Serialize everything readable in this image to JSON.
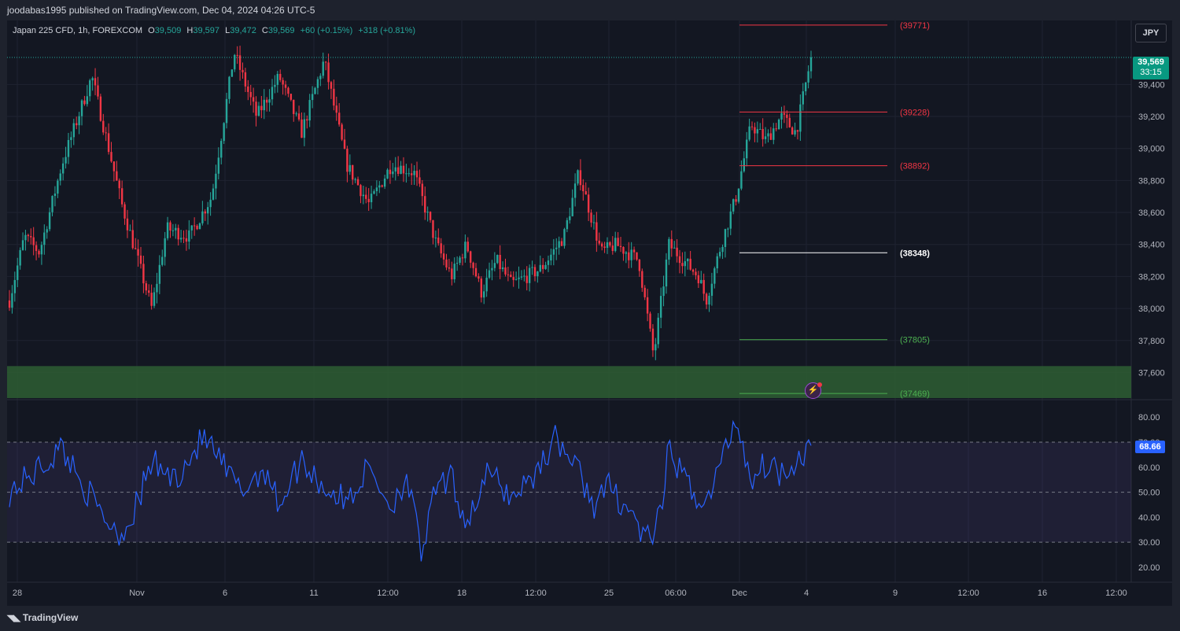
{
  "publisher_line": "joodabas1995 published on TradingView.com, Dec 04, 2024 04:26 UTC-5",
  "symbol_info": {
    "name": "Japan 225 CFD, 1h, FOREXCOM",
    "open_label": "O",
    "open": "39,509",
    "high_label": "H",
    "high": "39,597",
    "low_label": "L",
    "low": "39,472",
    "close_label": "C",
    "close": "39,569",
    "change": "+60 (+0.15%)",
    "change2": "+318 (+0.81%)"
  },
  "currency_button": "JPY",
  "last_price": {
    "price": "39,569",
    "countdown": "33:15"
  },
  "rsi_value_label": "68.66",
  "brand": "TradingView",
  "alert_icon": "lightning-alert-icon",
  "colors": {
    "background": "#131722",
    "up": "#26a69a",
    "down": "#f23645",
    "rsi_line": "#2962ff",
    "rsi_band": "#7e57c2",
    "support_zone": "#2e5e33",
    "level_red": "#f23645",
    "level_white": "#ffffff",
    "level_green": "#4caf50"
  },
  "chart_data": [
    {
      "type": "candlestick",
      "title": "Japan 225 CFD, 1h, FOREXCOM",
      "ylim": [
        37430,
        39800
      ],
      "y_ticks": [
        {
          "value": 39400,
          "label": "39,400"
        },
        {
          "value": 39200,
          "label": "39,200"
        },
        {
          "value": 39000,
          "label": "39,000"
        },
        {
          "value": 38800,
          "label": "38,800"
        },
        {
          "value": 38600,
          "label": "38,600"
        },
        {
          "value": 38400,
          "label": "38,400"
        },
        {
          "value": 38200,
          "label": "38,200"
        },
        {
          "value": 38000,
          "label": "38,000"
        },
        {
          "value": 37800,
          "label": "37,800"
        },
        {
          "value": 37600,
          "label": "37,600"
        }
      ],
      "x_ticks": [
        "28",
        "Nov",
        "6",
        "11",
        "12:00",
        "18",
        "12:00",
        "25",
        "06:00",
        "Dec",
        "4",
        "9",
        "12:00",
        "16",
        "12:00"
      ],
      "horizontal_levels": [
        {
          "value": 39771,
          "label": "(39771)",
          "color": "red"
        },
        {
          "value": 39228,
          "label": "(39228)",
          "color": "red"
        },
        {
          "value": 38892,
          "label": "(38892)",
          "color": "red"
        },
        {
          "value": 38348,
          "label": "(38348)",
          "color": "white"
        },
        {
          "value": 37805,
          "label": "(37805)",
          "color": "green"
        },
        {
          "value": 37469,
          "label": "(37469)",
          "color": "green"
        }
      ],
      "support_zone": [
        37440,
        37640
      ],
      "last_close": 39569,
      "price_path": [
        [
          0,
          38050
        ],
        [
          0.02,
          38450
        ],
        [
          0.04,
          38350
        ],
        [
          0.07,
          38900
        ],
        [
          0.11,
          39450
        ],
        [
          0.15,
          38650
        ],
        [
          0.19,
          38000
        ],
        [
          0.21,
          38500
        ],
        [
          0.24,
          38450
        ],
        [
          0.27,
          38700
        ],
        [
          0.3,
          39600
        ],
        [
          0.33,
          39200
        ],
        [
          0.36,
          39450
        ],
        [
          0.39,
          39100
        ],
        [
          0.42,
          39550
        ],
        [
          0.45,
          38900
        ],
        [
          0.48,
          38650
        ],
        [
          0.51,
          38900
        ],
        [
          0.54,
          38850
        ],
        [
          0.57,
          38400
        ],
        [
          0.59,
          38200
        ],
        [
          0.61,
          38400
        ],
        [
          0.63,
          38100
        ],
        [
          0.65,
          38300
        ],
        [
          0.67,
          38150
        ],
        [
          0.69,
          38200
        ],
        [
          0.71,
          38250
        ],
        [
          0.74,
          38450
        ],
        [
          0.76,
          38850
        ],
        [
          0.79,
          38350
        ],
        [
          0.81,
          38400
        ],
        [
          0.84,
          38300
        ],
        [
          0.86,
          37700
        ],
        [
          0.88,
          38400
        ],
        [
          0.9,
          38300
        ],
        [
          0.92,
          38200
        ],
        [
          0.93,
          38050
        ],
        [
          0.95,
          38400
        ],
        [
          0.97,
          38700
        ],
        [
          0.99,
          39150
        ],
        [
          1.01,
          39050
        ],
        [
          1.03,
          39200
        ],
        [
          1.05,
          39100
        ],
        [
          1.07,
          39569
        ]
      ]
    },
    {
      "type": "line",
      "title": "RSI",
      "ylim": [
        14,
        87
      ],
      "y_ticks": [
        {
          "value": 80,
          "label": "80.00"
        },
        {
          "value": 70,
          "label": "70.00"
        },
        {
          "value": 60,
          "label": "60.00"
        },
        {
          "value": 50,
          "label": "50.00"
        },
        {
          "value": 40,
          "label": "40.00"
        },
        {
          "value": 30,
          "label": "30.00"
        },
        {
          "value": 20,
          "label": "20.00"
        }
      ],
      "bands": {
        "upper": 70,
        "middle": 50,
        "lower": 30
      },
      "last_value": 68.66
    }
  ]
}
